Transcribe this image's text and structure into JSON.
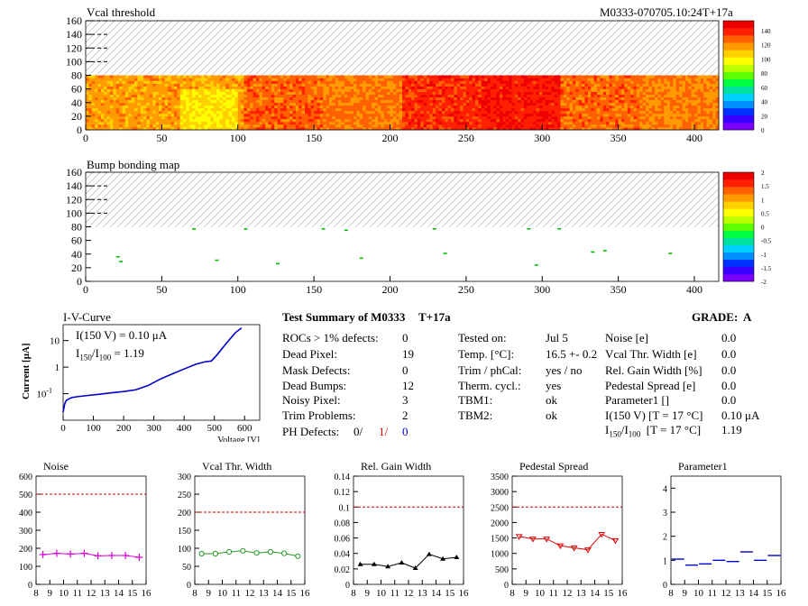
{
  "header": {
    "map1_title": "Vcal threshold",
    "module_id": "M0333-070705.10:24T+17a",
    "map2_title": "Bump bonding map"
  },
  "maps": {
    "x_ticks": [
      "0",
      "50",
      "100",
      "150",
      "200",
      "250",
      "300",
      "350",
      "400"
    ],
    "y_ticks": [
      "0",
      "20",
      "40",
      "60",
      "80",
      "100",
      "120",
      "140",
      "160"
    ],
    "x_max": 416,
    "y_max": 160,
    "data_rows": 80,
    "colorbar1_ticks": [
      "0",
      "20",
      "40",
      "60",
      "80",
      "100",
      "120",
      "140"
    ],
    "colorbar2_ticks": [
      "-2",
      "-1.5",
      "-1",
      "-0.5",
      "0",
      "0.5",
      "1",
      "1.5",
      "2"
    ]
  },
  "iv": {
    "title": "I-V-Curve",
    "ylabel": "Current [μA]",
    "xlabel": "Voltage [V]",
    "line1": "I(150 V) = 0.10 μA",
    "line2_a": "I",
    "line2_sub1": "150",
    "line2_b": "/I",
    "line2_sub2": "100",
    "line2_c": "= 1.19",
    "x_ticks": [
      "0",
      "100",
      "200",
      "300",
      "400",
      "500",
      "600"
    ],
    "y_ticks": [
      "10",
      "1",
      "10"
    ],
    "y_tick_exp": "-1"
  },
  "summary": {
    "title": "Test Summary of M0333",
    "tag": "T+17a",
    "grade_label": "GRADE:",
    "grade": "A",
    "col1": [
      {
        "label": "ROCs > 1% defects:",
        "value": "0"
      },
      {
        "label": "Dead Pixel:",
        "value": "19"
      },
      {
        "label": "Mask Defects:",
        "value": "0"
      },
      {
        "label": "Dead Bumps:",
        "value": "12"
      },
      {
        "label": "Noisy Pixel:",
        "value": "3"
      },
      {
        "label": "Trim Problems:",
        "value": "2"
      }
    ],
    "ph_label": "PH Defects:",
    "ph_values": [
      "0/",
      "1/",
      "0"
    ],
    "col2": [
      {
        "label": "Tested on:",
        "value": "Jul 5"
      },
      {
        "label": "Temp. [°C]:",
        "value": "16.5 +- 0.2"
      },
      {
        "label": "Trim / phCal:",
        "value": "yes / no"
      },
      {
        "label": "Therm. cycl.:",
        "value": "yes"
      },
      {
        "label": "TBM1:",
        "value": "ok"
      },
      {
        "label": "TBM2:",
        "value": "ok"
      }
    ],
    "col3": [
      {
        "label": "Noise [e]",
        "value": "0.0"
      },
      {
        "label": "Vcal Thr. Width [e]",
        "value": "0.0"
      },
      {
        "label": "Rel. Gain Width [%]",
        "value": "0.0"
      },
      {
        "label": "Pedestal Spread [e]",
        "value": "0.0"
      },
      {
        "label": "Parameter1 []",
        "value": "0.0"
      },
      {
        "label": "I(150 V) [T = 17 °C]",
        "value": "0.10 μA"
      }
    ],
    "ratio_a": "I",
    "ratio_sub1": "150",
    "ratio_b": "/I",
    "ratio_sub2": "100",
    "ratio_c": "[T = 17 °C]",
    "ratio_value": "1.19"
  },
  "chart_data": [
    {
      "type": "line",
      "title": "Noise",
      "x": [
        8.5,
        9.5,
        10.5,
        11.5,
        12.5,
        13.5,
        14.5,
        15.5
      ],
      "values": [
        165,
        172,
        168,
        172,
        158,
        160,
        160,
        150
      ],
      "ylim": [
        0,
        600
      ],
      "threshold": 500,
      "yticks": [
        "0",
        "100",
        "200",
        "300",
        "400",
        "500",
        "600"
      ],
      "xticks": [
        "8",
        "9",
        "10",
        "11",
        "12",
        "13",
        "14",
        "15",
        "16"
      ],
      "color": "#dd00dd",
      "marker": "cross"
    },
    {
      "type": "line",
      "title": "Vcal Thr. Width",
      "x": [
        8.5,
        9.5,
        10.5,
        11.5,
        12.5,
        13.5,
        14.5,
        15.5
      ],
      "values": [
        85,
        85,
        90,
        93,
        87,
        90,
        86,
        78
      ],
      "ylim": [
        0,
        300
      ],
      "threshold": 200,
      "yticks": [
        "0",
        "50",
        "100",
        "150",
        "200",
        "250",
        "300"
      ],
      "xticks": [
        "8",
        "9",
        "10",
        "11",
        "12",
        "13",
        "14",
        "15",
        "16"
      ],
      "color": "#2a9a2a",
      "marker": "circle"
    },
    {
      "type": "line",
      "title": "Rel. Gain Width",
      "x": [
        8.5,
        9.5,
        10.5,
        11.5,
        12.5,
        13.5,
        14.5,
        15.5
      ],
      "values": [
        0.026,
        0.026,
        0.023,
        0.028,
        0.021,
        0.039,
        0.033,
        0.035
      ],
      "ylim": [
        0,
        0.14
      ],
      "threshold": 0.1,
      "yticks": [
        "0",
        "0.02",
        "0.04",
        "0.06",
        "0.08",
        "0.1",
        "0.12",
        "0.14"
      ],
      "xticks": [
        "8",
        "9",
        "10",
        "11",
        "12",
        "13",
        "14",
        "15",
        "16"
      ],
      "color": "#000000",
      "marker": "triangle"
    },
    {
      "type": "line",
      "title": "Pedestal Spread",
      "x": [
        8.5,
        9.5,
        10.5,
        11.5,
        12.5,
        13.5,
        14.5,
        15.5
      ],
      "values": [
        1550,
        1470,
        1470,
        1250,
        1180,
        1120,
        1620,
        1420
      ],
      "ylim": [
        0,
        3500
      ],
      "threshold": 2500,
      "yticks": [
        "0",
        "500",
        "1000",
        "1500",
        "2000",
        "2500",
        "3000",
        "3500"
      ],
      "xticks": [
        "8",
        "9",
        "10",
        "11",
        "12",
        "13",
        "14",
        "15",
        "16"
      ],
      "color": "#dd0000",
      "marker": "triangle-down"
    },
    {
      "type": "scatter",
      "title": "Parameter1",
      "x": [
        8.5,
        9.5,
        10.5,
        11.5,
        12.5,
        13.5,
        14.5,
        15.5
      ],
      "values": [
        1.05,
        0.8,
        0.85,
        1.0,
        0.95,
        1.35,
        1.0,
        1.2
      ],
      "ylim": [
        0,
        4.5
      ],
      "yticks": [
        "0",
        "1",
        "2",
        "3",
        "4"
      ],
      "xticks": [
        "8",
        "9",
        "10",
        "11",
        "12",
        "13",
        "14",
        "15",
        "16"
      ],
      "color": "#0000cc",
      "marker": "hbar"
    }
  ],
  "iv_curve": {
    "voltages": [
      0,
      5,
      10,
      20,
      30,
      50,
      80,
      120,
      160,
      200,
      240,
      280,
      320,
      360,
      400,
      440,
      470,
      490,
      510,
      540,
      570,
      590
    ],
    "currents": [
      0.02,
      0.04,
      0.055,
      0.065,
      0.072,
      0.078,
      0.085,
      0.095,
      0.108,
      0.12,
      0.14,
      0.2,
      0.35,
      0.55,
      0.85,
      1.3,
      1.6,
      1.7,
      3.0,
      8.0,
      20,
      30
    ],
    "xlim": [
      0,
      650
    ],
    "ylim_log10": [
      -2,
      1.6
    ]
  }
}
